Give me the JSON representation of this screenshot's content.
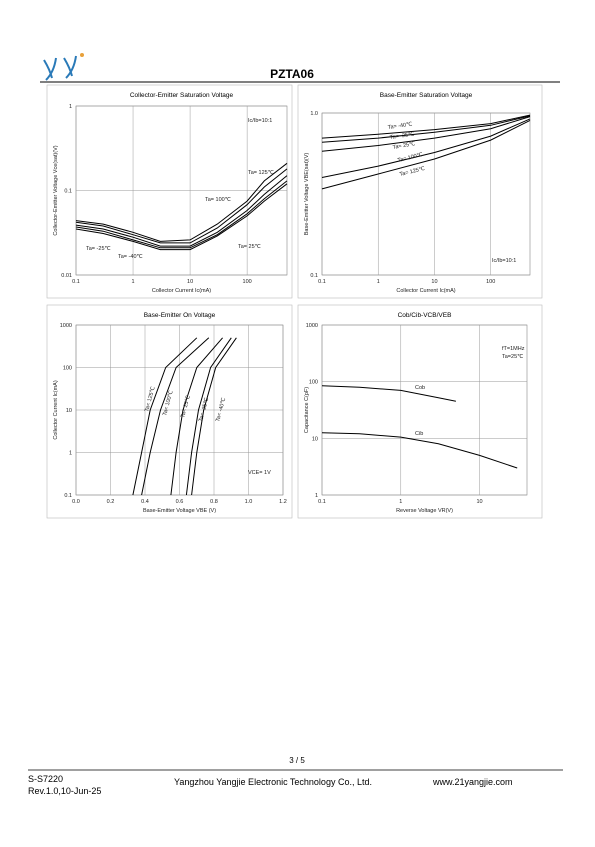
{
  "header": {
    "title": "PZTA06"
  },
  "chart_data": [
    {
      "type": "line",
      "title": "Collector-Emitter Saturation Voltage",
      "x_label": "Collector Current  Ic(mA)",
      "y_label": "Collector-Emitter Voltage  Vce(sat)(V)",
      "xscale": "log",
      "yscale": "log",
      "xlim": [
        0.1,
        500
      ],
      "ylim": [
        0.01,
        1
      ],
      "xticks": [
        0.1,
        1,
        10,
        100
      ],
      "yticks": [
        0.01,
        0.1,
        1
      ],
      "grid": true,
      "annotations": [
        "Ic/Ib=10:1"
      ],
      "series": [
        {
          "name": "Ta= 125℃",
          "color": "#000000",
          "x": [
            0.1,
            0.3,
            1,
            3,
            10,
            30,
            100,
            200,
            500
          ],
          "values": [
            0.044,
            0.04,
            0.032,
            0.025,
            0.026,
            0.04,
            0.075,
            0.13,
            0.21
          ]
        },
        {
          "name": "Ta= 100℃",
          "color": "#000000",
          "x": [
            0.1,
            0.3,
            1,
            3,
            10,
            30,
            100,
            200,
            500
          ],
          "values": [
            0.042,
            0.038,
            0.03,
            0.024,
            0.024,
            0.036,
            0.068,
            0.11,
            0.18
          ]
        },
        {
          "name": "Ta= 25℃",
          "color": "#000000",
          "x": [
            0.1,
            0.3,
            1,
            3,
            10,
            30,
            100,
            200,
            500
          ],
          "values": [
            0.039,
            0.035,
            0.028,
            0.022,
            0.022,
            0.032,
            0.058,
            0.09,
            0.15
          ]
        },
        {
          "name": "Ta= -25℃",
          "color": "#000000",
          "x": [
            0.1,
            0.3,
            1,
            3,
            10,
            30,
            100,
            200,
            500
          ],
          "values": [
            0.037,
            0.033,
            0.026,
            0.021,
            0.021,
            0.03,
            0.053,
            0.08,
            0.13
          ]
        },
        {
          "name": "Ta= -40℃",
          "color": "#000000",
          "x": [
            0.1,
            0.3,
            1,
            3,
            10,
            30,
            100,
            200,
            500
          ],
          "values": [
            0.035,
            0.031,
            0.025,
            0.02,
            0.02,
            0.029,
            0.05,
            0.075,
            0.12
          ]
        }
      ]
    },
    {
      "type": "line",
      "title": "Base-Emitter Saturation Voltage",
      "x_label": "Collector Current  Ic(mA)",
      "y_label": "Base-Emitter Voltage  VBE(sat)(V)",
      "xscale": "log",
      "yscale": "log",
      "xlim": [
        0.1,
        500
      ],
      "ylim": [
        0.1,
        1
      ],
      "xticks": [
        0.1,
        1,
        10,
        100
      ],
      "yticks": [
        0.1,
        {
          "value": 1,
          "label": "1.0"
        }
      ],
      "grid": true,
      "annotations": [
        "Ic/Ib=10:1"
      ],
      "series": [
        {
          "name": "Ta= -40℃",
          "color": "#000000",
          "x": [
            0.1,
            1,
            10,
            100,
            500
          ],
          "values": [
            0.7,
            0.74,
            0.79,
            0.86,
            0.97
          ]
        },
        {
          "name": "Ta= -25℃",
          "color": "#000000",
          "x": [
            0.1,
            1,
            10,
            100,
            500
          ],
          "values": [
            0.66,
            0.7,
            0.76,
            0.84,
            0.96
          ]
        },
        {
          "name": "Ta= 25℃",
          "color": "#000000",
          "x": [
            0.1,
            1,
            10,
            100,
            500
          ],
          "values": [
            0.58,
            0.63,
            0.7,
            0.8,
            0.95
          ]
        },
        {
          "name": "Ta= 100℃",
          "color": "#000000",
          "x": [
            0.1,
            1,
            10,
            100,
            500
          ],
          "values": [
            0.4,
            0.47,
            0.57,
            0.72,
            0.92
          ]
        },
        {
          "name": "Ta= 125℃",
          "color": "#000000",
          "x": [
            0.1,
            1,
            10,
            100,
            500
          ],
          "values": [
            0.34,
            0.42,
            0.52,
            0.68,
            0.9
          ]
        }
      ]
    },
    {
      "type": "line",
      "title": "Base-Emitter On Voltage",
      "x_label": "Base-Emitter Voltage  VBE (V)",
      "y_label": "Collector Current  Ic(mA)",
      "xscale": "linear",
      "yscale": "log",
      "xlim": [
        0,
        1.2
      ],
      "ylim": [
        0.1,
        1000
      ],
      "xticks": [
        {
          "value": 0,
          "label": "0.0"
        },
        0.2,
        0.4,
        0.6,
        0.8,
        {
          "value": 1,
          "label": "1.0"
        },
        1.2
      ],
      "yticks": [
        0.1,
        1,
        10,
        100,
        1000
      ],
      "grid": true,
      "annotations": [
        "VCE= 1V"
      ],
      "series": [
        {
          "name": "Ta= 125℃",
          "color": "#000000",
          "x": [
            0.33,
            0.38,
            0.43,
            0.52,
            0.7
          ],
          "values": [
            0.1,
            1,
            10,
            100,
            500
          ]
        },
        {
          "name": "Ta= 100℃",
          "color": "#000000",
          "x": [
            0.38,
            0.43,
            0.49,
            0.58,
            0.77
          ],
          "values": [
            0.1,
            1,
            10,
            100,
            500
          ]
        },
        {
          "name": "Ta= 25℃",
          "color": "#000000",
          "x": [
            0.55,
            0.58,
            0.62,
            0.7,
            0.85
          ],
          "values": [
            0.1,
            1,
            10,
            100,
            500
          ]
        },
        {
          "name": "Ta= -25℃",
          "color": "#000000",
          "x": [
            0.64,
            0.67,
            0.71,
            0.78,
            0.9
          ],
          "values": [
            0.1,
            1,
            10,
            100,
            500
          ]
        },
        {
          "name": "Ta= -40℃",
          "color": "#000000",
          "x": [
            0.67,
            0.7,
            0.74,
            0.81,
            0.93
          ],
          "values": [
            0.1,
            1,
            10,
            100,
            500
          ]
        }
      ]
    },
    {
      "type": "line",
      "title": "Cob/Cib-VCB/VEB",
      "x_label": "Reverse Voltage  VR(V)",
      "y_label": "Capacitance  C(pF)",
      "xscale": "log",
      "yscale": "log",
      "xlim": [
        0.1,
        40
      ],
      "ylim": [
        1,
        1000
      ],
      "xticks": [
        0.1,
        1,
        10
      ],
      "yticks": [
        1,
        10,
        100,
        1000
      ],
      "grid": true,
      "annotations": [
        "fT=1MHz",
        "Ta=25℃"
      ],
      "series": [
        {
          "name": "Cob",
          "color": "#000000",
          "x": [
            0.1,
            0.3,
            1,
            3,
            5
          ],
          "values": [
            85,
            80,
            70,
            52,
            45
          ]
        },
        {
          "name": "Cib",
          "color": "#000000",
          "x": [
            0.1,
            0.3,
            1,
            3,
            10,
            30
          ],
          "values": [
            12.5,
            12,
            10.5,
            8,
            5,
            3
          ]
        }
      ]
    }
  ],
  "footer": {
    "page": "3 / 5",
    "doc": "S-S7220",
    "rev": "Rev.1.0,10-Jun-25",
    "company": "Yangzhou Yangjie Electronic Technology Co., Ltd.",
    "web": "www.21yangjie.com"
  }
}
